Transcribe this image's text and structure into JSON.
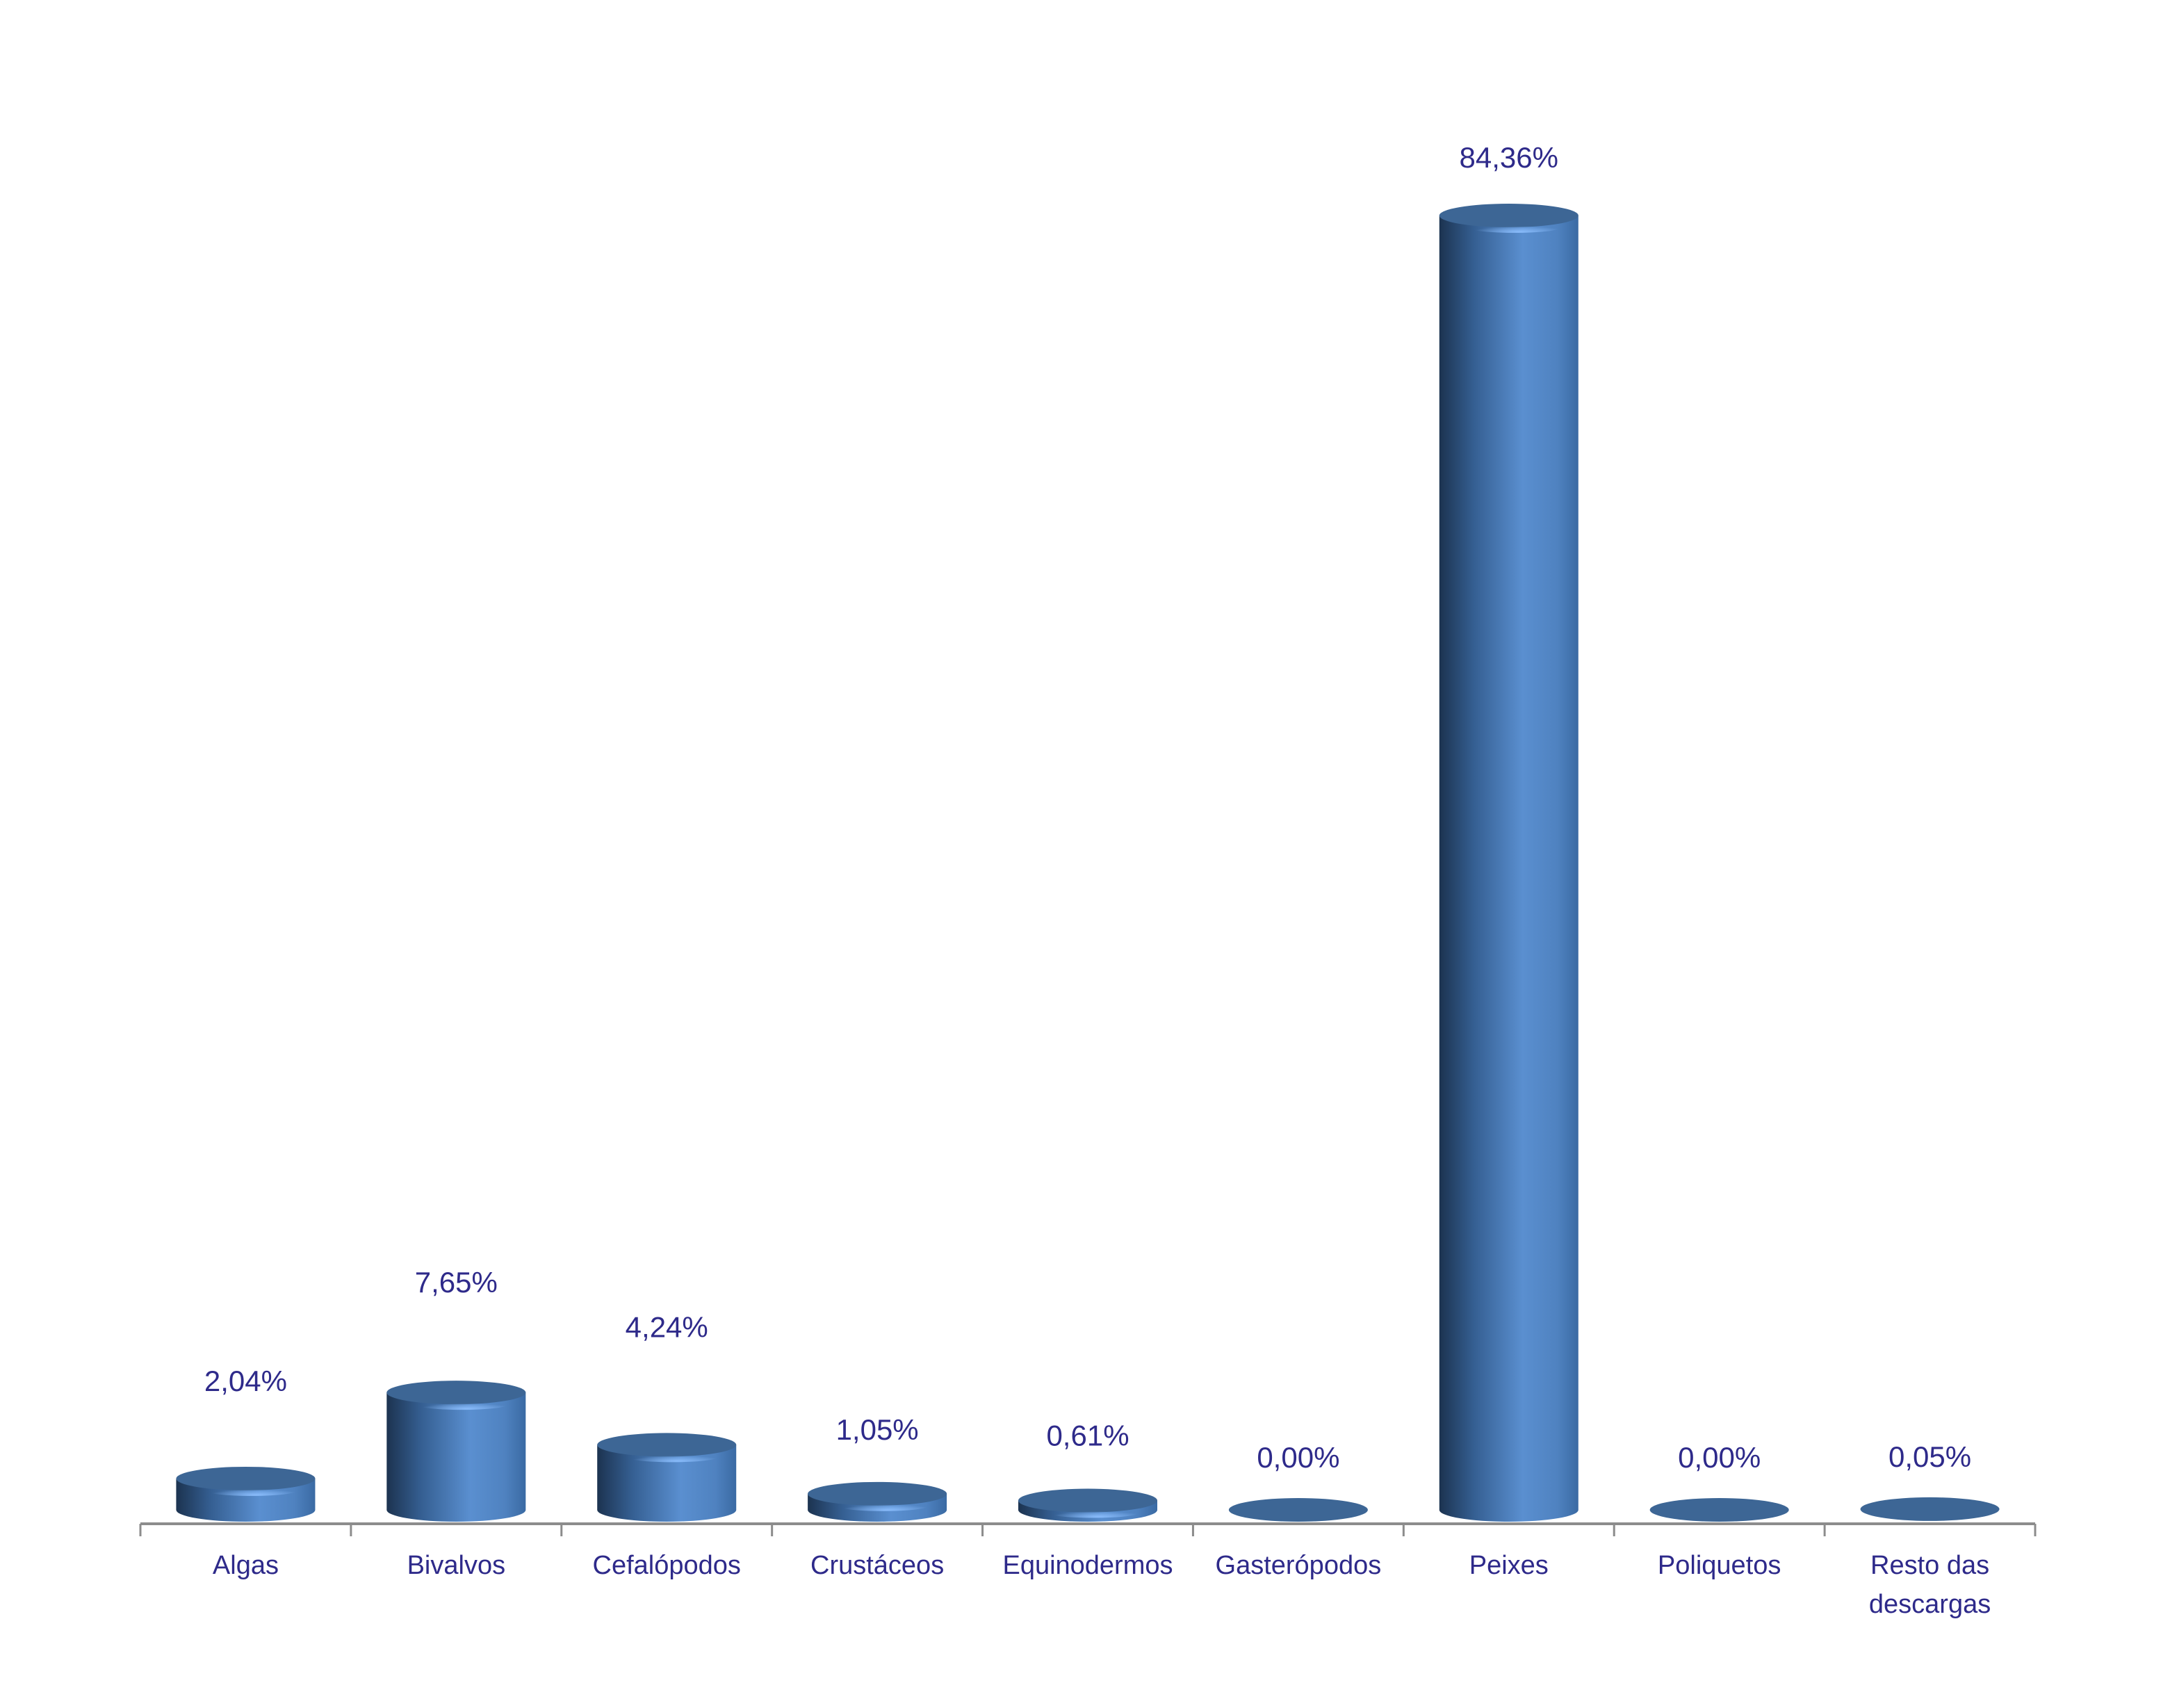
{
  "chart_data": {
    "type": "bar",
    "style": "3d-cylinder",
    "categories": [
      "Algas",
      "Bivalvos",
      "Cefalópodos",
      "Crustáceos",
      "Equinodermos",
      "Gasterópodos",
      "Peixes",
      "Poliquetos",
      [
        "Resto das",
        "descargas"
      ]
    ],
    "values": [
      2.04,
      7.65,
      4.24,
      1.05,
      0.61,
      0.0,
      84.36,
      0.0,
      0.05
    ],
    "data_labels": [
      "2,04%",
      "7,65%",
      "4,24%",
      "1,05%",
      "0,61%",
      "0,00%",
      "84,36%",
      "0,00%",
      "0,05%"
    ],
    "title": "",
    "xlabel": "",
    "ylabel": "",
    "ylim": [
      0,
      84.36
    ],
    "grid": false,
    "legend": "none",
    "colors": {
      "bar": "#4f81bd",
      "text": "#2e2a8a",
      "axis": "#8c8c8c"
    }
  }
}
